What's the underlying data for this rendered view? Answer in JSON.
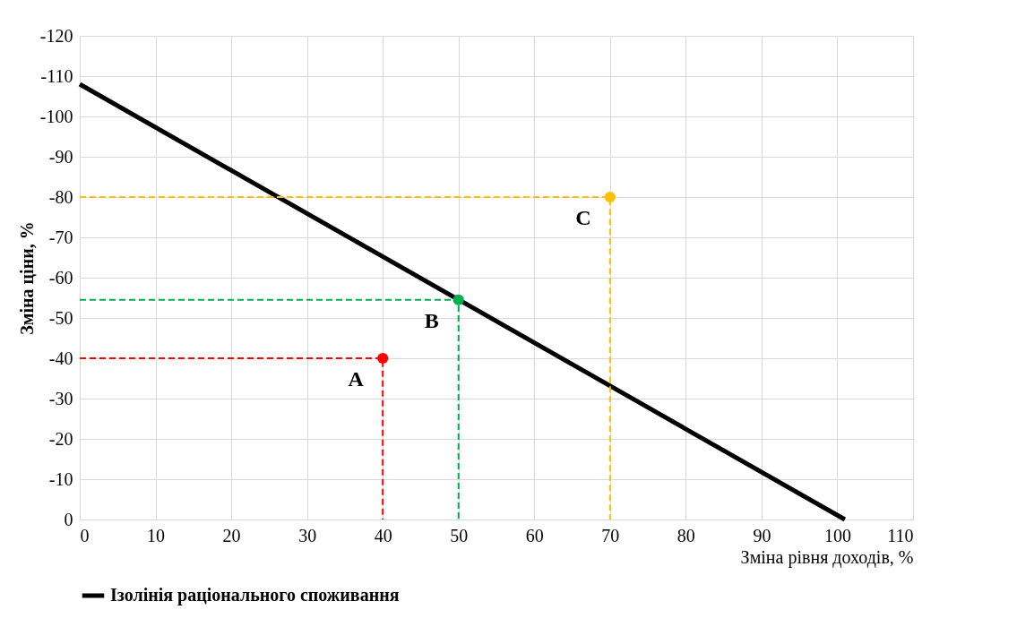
{
  "chart_data": {
    "type": "line",
    "xlabel": "Зміна рівня доходів, %",
    "ylabel": "Зміна ціни, %",
    "xlim": [
      0,
      110
    ],
    "xticks": [
      0,
      10,
      20,
      30,
      40,
      50,
      60,
      70,
      80,
      90,
      100,
      110
    ],
    "ylim": [
      0,
      -120
    ],
    "yticks": [
      0,
      -10,
      -20,
      -30,
      -40,
      -50,
      -60,
      -70,
      -80,
      -90,
      -100,
      -110,
      -120
    ],
    "grid": true,
    "legend": "bottom",
    "series": [
      {
        "name": "Ізолінія раціонального споживання",
        "color": "#000000",
        "x": [
          0,
          101
        ],
        "values": [
          -108,
          0
        ]
      },
      {
        "line_style": "dashed",
        "color": "#ff0000",
        "x": [
          0,
          40,
          40
        ],
        "values": [
          -40,
          -40,
          0
        ]
      },
      {
        "line_style": "dashed",
        "color": "#00b050",
        "x": [
          0,
          50,
          50
        ],
        "values": [
          -54.5,
          -54.5,
          0
        ]
      },
      {
        "line_style": "dashed",
        "color": "#ffc000",
        "x": [
          0,
          70,
          70
        ],
        "values": [
          -80,
          -80,
          0
        ]
      },
      {
        "type": "scatter",
        "marker": "circle",
        "color": "#ff0000",
        "x": [
          40
        ],
        "values": [
          -40
        ]
      },
      {
        "type": "scatter",
        "marker": "circle",
        "color": "#00b050",
        "x": [
          50
        ],
        "values": [
          -54.5
        ]
      },
      {
        "type": "scatter",
        "marker": "circle",
        "color": "#ffc000",
        "x": [
          70
        ],
        "values": [
          -80
        ]
      }
    ],
    "annotations": [
      {
        "text": "A",
        "x": 40,
        "y": -40
      },
      {
        "text": "B",
        "x": 50,
        "y": -54.5
      },
      {
        "text": "C",
        "x": 70,
        "y": -80
      }
    ]
  }
}
